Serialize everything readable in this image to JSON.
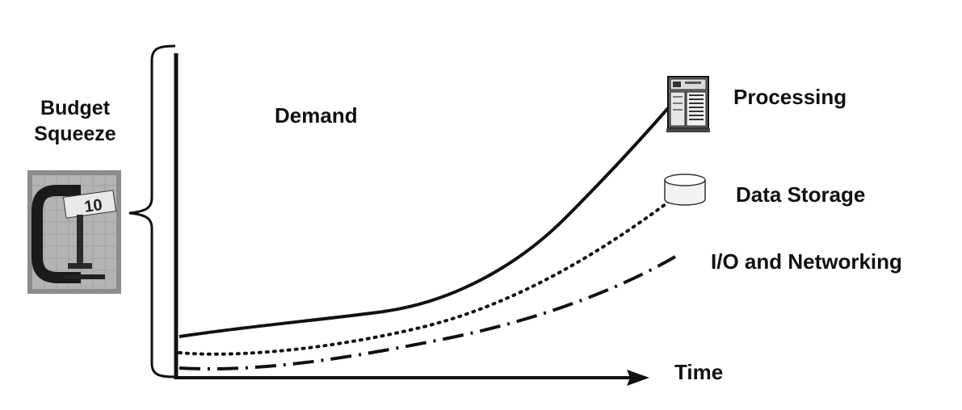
{
  "budget": {
    "line1": "Budget",
    "line2": "Squeeze",
    "image_icon": "c-clamp-squeezing-money-icon"
  },
  "demand_label": "Demand",
  "time_label": "Time",
  "series": [
    {
      "name": "Processing",
      "style": "solid",
      "icon": "server-icon"
    },
    {
      "name": "Data Storage",
      "style": "dotted",
      "icon": "database-cylinder-icon"
    },
    {
      "name": "I/O and Networking",
      "style": "dash-dot",
      "icon": ""
    }
  ],
  "colors": {
    "ink": "#111111",
    "background": "#ffffff"
  }
}
